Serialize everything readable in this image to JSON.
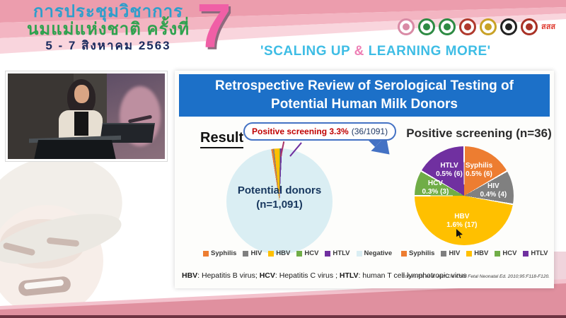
{
  "header": {
    "thai_title_line1": "การประชุมวิชาการ",
    "thai_title_line2": "นมแม่แห่งชาติ ครั้งที่",
    "date_line": "5 - 7 สิงหาคม 2563",
    "edition_number": "7",
    "tagline_pre": "'SCALING UP ",
    "tagline_amp": "&",
    "tagline_post": " LEARNING MORE'",
    "tagline_color": "#3EBDE5",
    "logos": [
      {
        "name": "breastfeeding-foundation-logo",
        "color": "#D98BA6"
      },
      {
        "name": "public-health-ministry-logo",
        "color": "#2E8B44"
      },
      {
        "name": "medical-department-logo",
        "color": "#2E8B44"
      },
      {
        "name": "royal-college-logo",
        "color": "#B03A2E"
      },
      {
        "name": "royal-institute-crest-logo",
        "color": "#C9A227"
      },
      {
        "name": "nursing-council-logo",
        "color": "#222222"
      },
      {
        "name": "pediatric-society-logo",
        "color": "#A93226"
      },
      {
        "name": "thaihealth-logo",
        "color": "#E03C31",
        "label": "สสส"
      }
    ]
  },
  "slide": {
    "title": "Retrospective Review of Serological Testing of Potential Human Milk Donors",
    "result_label": "Result",
    "badge": {
      "highlight": "Positive screening 3.3%",
      "detail": "(36/1091)"
    },
    "left_pie_label_line1": "Potential donors",
    "left_pie_label_line2": "(n=1,091)",
    "right_chart_title": "Positive screening (n=36)",
    "footnote": {
      "b1": "HBV",
      "t1": ": Hepatitis B virus; ",
      "b2": "HCV",
      "t2": ": Hepatitis C virus ; ",
      "b3": "HTLV",
      "t3": ": human T cell lymphotropic virus"
    },
    "citation": "Cohen RS, et al. Arch Dis Child Fetal Neonatal Ed. 2010;95:F118-F120."
  },
  "chart_data": [
    {
      "type": "pie",
      "title": "Potential donors (n=1,091)",
      "total": 1091,
      "start_angle_deg": -9,
      "slices": [
        {
          "label": "Syphilis",
          "value": 6,
          "color": "#ED7D31"
        },
        {
          "label": "HIV",
          "value": 4,
          "color": "#808080"
        },
        {
          "label": "HBV",
          "value": 17,
          "color": "#FFC000"
        },
        {
          "label": "HCV",
          "value": 3,
          "color": "#70AD47"
        },
        {
          "label": "HTLV",
          "value": 6,
          "color": "#7030A0"
        },
        {
          "label": "Negative",
          "value": 1055,
          "color": "#DAEEF3"
        }
      ],
      "legend": [
        {
          "label": "Syphilis",
          "color": "#ED7D31"
        },
        {
          "label": "HIV",
          "color": "#7F7F7F"
        },
        {
          "label": "HBV",
          "color": "#FFC000"
        },
        {
          "label": "HCV",
          "color": "#70AD47"
        },
        {
          "label": "HTLV",
          "color": "#7030A0"
        },
        {
          "label": "Negative",
          "color": "#DAEEF3"
        }
      ],
      "annotation": "Positive screening 3.3% (36/1091)"
    },
    {
      "type": "pie",
      "title": "Positive screening (n=36)",
      "total": 36,
      "start_angle_deg": 0,
      "slices": [
        {
          "label": "Syphilis",
          "pct": "0.5%",
          "value": 6,
          "color": "#ED7D31"
        },
        {
          "label": "HIV",
          "pct": "0.4%",
          "value": 4,
          "color": "#808080"
        },
        {
          "label": "HBV",
          "pct": "1.6%",
          "value": 17,
          "color": "#FFC000"
        },
        {
          "label": "HCV",
          "pct": "0.3%",
          "value": 3,
          "color": "#70AD47"
        },
        {
          "label": "HTLV",
          "pct": "0.5%",
          "value": 6,
          "color": "#7030A0"
        }
      ],
      "legend": [
        {
          "label": "Syphilis",
          "color": "#ED7D31"
        },
        {
          "label": "HIV",
          "color": "#7F7F7F"
        },
        {
          "label": "HBV",
          "color": "#FFC000"
        },
        {
          "label": "HCV",
          "color": "#70AD47"
        },
        {
          "label": "HTLV",
          "color": "#7030A0"
        }
      ]
    }
  ],
  "colors": {
    "banner_blue": "#1C70C8",
    "arrow_blue": "#4472C4",
    "badge_red": "#C00000",
    "badge_navy": "#1F3864",
    "header_pink_dark": "#EC9DAD",
    "bottom_band_pink": "#E0909F"
  }
}
